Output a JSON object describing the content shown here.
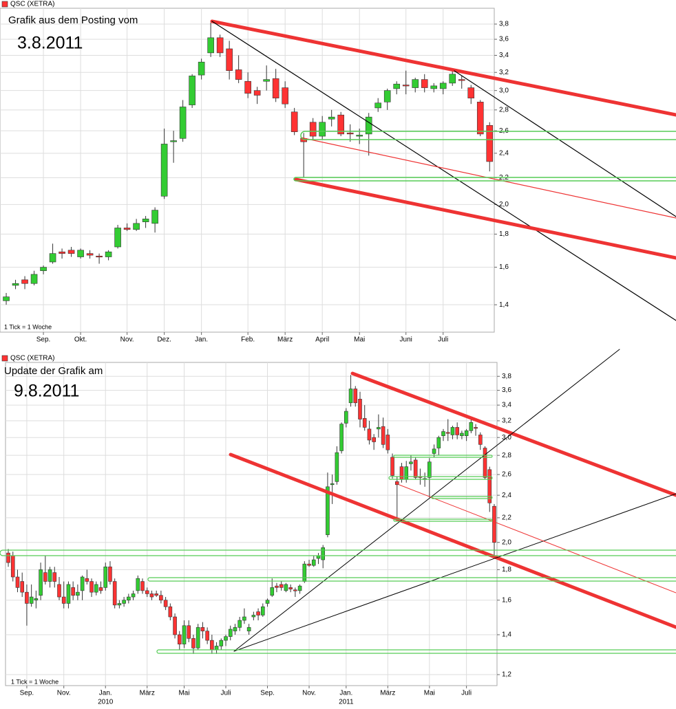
{
  "chart_data": [
    {
      "type": "candlestick",
      "legend": "QSC (XETRA)",
      "title": "Grafik aus dem Posting vom",
      "subtitle": "3.8.2011",
      "note": "1 Tick = 1 Woche",
      "up_color": "#33cc33",
      "down_color": "#ff3333",
      "log_scale": true,
      "grid": true,
      "xlim": [
        -0.67,
        52.5
      ],
      "xticks": [
        {
          "value": 4,
          "label": "Sep."
        },
        {
          "value": 8,
          "label": "Okt."
        },
        {
          "value": 13,
          "label": "Nov."
        },
        {
          "value": 17,
          "label": "Dez."
        },
        {
          "value": 21,
          "label": "Jan."
        },
        {
          "value": 26,
          "label": "Feb."
        },
        {
          "value": 30,
          "label": "März"
        },
        {
          "value": 34,
          "label": "April"
        },
        {
          "value": 38,
          "label": "Mai"
        },
        {
          "value": 43,
          "label": "Juni"
        },
        {
          "value": 47,
          "label": "Juli"
        }
      ],
      "ylim": [
        1.27,
        4.02
      ],
      "yticks": [
        {
          "value": 1.4,
          "label": "1,4"
        },
        {
          "value": 1.6,
          "label": "1,6"
        },
        {
          "value": 1.8,
          "label": "1,8"
        },
        {
          "value": 2.0,
          "label": "2,0"
        },
        {
          "value": 2.2,
          "label": "2,2"
        },
        {
          "value": 2.4,
          "label": "2,4"
        },
        {
          "value": 2.6,
          "label": "2,6"
        },
        {
          "value": 2.8,
          "label": "2,8"
        },
        {
          "value": 3.0,
          "label": "3,0"
        },
        {
          "value": 3.2,
          "label": "3,2"
        },
        {
          "value": 3.4,
          "label": "3,4"
        },
        {
          "value": 3.6,
          "label": "3,6"
        },
        {
          "value": 3.8,
          "label": "3,8"
        }
      ],
      "candles": [
        [
          1.42,
          1.46,
          1.4,
          1.44
        ],
        [
          1.5,
          1.53,
          1.48,
          1.51
        ],
        [
          1.53,
          1.55,
          1.48,
          1.51
        ],
        [
          1.51,
          1.58,
          1.5,
          1.56
        ],
        [
          1.58,
          1.61,
          1.56,
          1.6
        ],
        [
          1.63,
          1.74,
          1.62,
          1.68
        ],
        [
          1.69,
          1.71,
          1.65,
          1.68
        ],
        [
          1.7,
          1.72,
          1.66,
          1.68
        ],
        [
          1.66,
          1.71,
          1.65,
          1.7
        ],
        [
          1.68,
          1.7,
          1.65,
          1.67
        ],
        [
          1.665,
          1.68,
          1.62,
          1.66
        ],
        [
          1.66,
          1.7,
          1.64,
          1.69
        ],
        [
          1.72,
          1.86,
          1.71,
          1.84
        ],
        [
          1.84,
          1.87,
          1.82,
          1.83
        ],
        [
          1.83,
          1.9,
          1.82,
          1.87
        ],
        [
          1.88,
          1.92,
          1.84,
          1.9
        ],
        [
          1.87,
          1.98,
          1.81,
          1.96
        ],
        [
          2.06,
          2.62,
          2.04,
          2.48
        ],
        [
          2.5,
          2.6,
          2.32,
          2.51
        ],
        [
          2.53,
          2.9,
          2.5,
          2.83
        ],
        [
          2.85,
          3.18,
          2.82,
          3.16
        ],
        [
          3.17,
          3.36,
          3.12,
          3.32
        ],
        [
          3.43,
          3.82,
          3.38,
          3.62
        ],
        [
          3.62,
          3.66,
          3.38,
          3.43
        ],
        [
          3.48,
          3.58,
          3.12,
          3.22
        ],
        [
          3.23,
          3.4,
          3.08,
          3.12
        ],
        [
          3.1,
          3.2,
          2.92,
          2.97
        ],
        [
          3.0,
          3.04,
          2.86,
          2.95
        ],
        [
          3.1,
          3.28,
          3.0,
          3.12
        ],
        [
          3.13,
          3.24,
          2.88,
          2.92
        ],
        [
          3.03,
          3.1,
          2.82,
          2.86
        ],
        [
          2.78,
          2.82,
          2.56,
          2.59
        ],
        [
          2.53,
          2.58,
          2.2,
          2.5
        ],
        [
          2.68,
          2.72,
          2.52,
          2.55
        ],
        [
          2.55,
          2.74,
          2.52,
          2.68
        ],
        [
          2.71,
          2.8,
          2.64,
          2.73
        ],
        [
          2.75,
          2.78,
          2.55,
          2.57
        ],
        [
          2.58,
          2.66,
          2.5,
          2.57
        ],
        [
          2.55,
          2.62,
          2.48,
          2.56
        ],
        [
          2.57,
          2.77,
          2.38,
          2.73
        ],
        [
          2.82,
          2.92,
          2.78,
          2.87
        ],
        [
          2.88,
          3.02,
          2.8,
          3.0
        ],
        [
          3.02,
          3.1,
          2.96,
          3.07
        ],
        [
          3.06,
          3.22,
          2.96,
          3.05
        ],
        [
          3.03,
          3.14,
          2.98,
          3.12
        ],
        [
          3.12,
          3.18,
          2.98,
          3.03
        ],
        [
          3.02,
          3.08,
          2.98,
          3.05
        ],
        [
          3.02,
          3.1,
          2.96,
          3.08
        ],
        [
          3.08,
          3.24,
          3.05,
          3.18
        ],
        [
          3.12,
          3.16,
          3.02,
          3.11
        ],
        [
          3.03,
          3.06,
          2.86,
          2.92
        ],
        [
          2.88,
          2.9,
          2.55,
          2.57
        ],
        [
          2.65,
          2.68,
          2.25,
          2.33
        ]
      ]
    },
    {
      "type": "candlestick",
      "legend": "QSC (XETRA)",
      "title": "Update der Grafik am",
      "subtitle": "9.8.2011",
      "note": "1 Tick = 1 Woche",
      "up_color": "#33cc33",
      "down_color": "#ff3333",
      "log_scale": true,
      "grid": true,
      "xlim": [
        -0.6,
        105.6
      ],
      "xticks": [
        {
          "value": 4,
          "label": "Sep."
        },
        {
          "value": 12,
          "label": "Nov."
        },
        {
          "value": 21,
          "label": "Jan."
        },
        {
          "value": 30,
          "label": "März"
        },
        {
          "value": 38,
          "label": "Mai"
        },
        {
          "value": 47,
          "label": "Juli"
        },
        {
          "value": 56,
          "label": "Sep."
        },
        {
          "value": 65,
          "label": "Nov."
        },
        {
          "value": 73,
          "label": "Jan."
        },
        {
          "value": 82,
          "label": "März"
        },
        {
          "value": 91,
          "label": "Mai"
        },
        {
          "value": 99,
          "label": "Juli"
        }
      ],
      "years": [
        {
          "value": 21,
          "label": "2010"
        },
        {
          "value": 73,
          "label": "2011"
        }
      ],
      "ylim": [
        1.15,
        4.01
      ],
      "yticks": [
        {
          "value": 1.2,
          "label": "1,2"
        },
        {
          "value": 1.4,
          "label": "1,4"
        },
        {
          "value": 1.6,
          "label": "1,6"
        },
        {
          "value": 1.8,
          "label": "1,8"
        },
        {
          "value": 2.0,
          "label": "2,0"
        },
        {
          "value": 2.2,
          "label": "2,2"
        },
        {
          "value": 2.4,
          "label": "2,4"
        },
        {
          "value": 2.6,
          "label": "2,6"
        },
        {
          "value": 2.8,
          "label": "2,8"
        },
        {
          "value": 3.0,
          "label": "3,0"
        },
        {
          "value": 3.2,
          "label": "3,2"
        },
        {
          "value": 3.4,
          "label": "3,4"
        },
        {
          "value": 3.6,
          "label": "3,6"
        },
        {
          "value": 3.8,
          "label": "3,8"
        }
      ],
      "candles": [
        [
          1.92,
          1.95,
          1.82,
          1.85
        ],
        [
          1.9,
          1.93,
          1.72,
          1.75
        ],
        [
          1.75,
          1.8,
          1.65,
          1.68
        ],
        [
          1.72,
          1.78,
          1.62,
          1.65
        ],
        [
          1.65,
          1.7,
          1.45,
          1.58
        ],
        [
          1.58,
          1.7,
          1.56,
          1.62
        ],
        [
          1.6,
          1.66,
          1.55,
          1.61
        ],
        [
          1.63,
          1.85,
          1.6,
          1.8
        ],
        [
          1.78,
          1.9,
          1.7,
          1.72
        ],
        [
          1.72,
          1.82,
          1.68,
          1.8
        ],
        [
          1.78,
          1.82,
          1.68,
          1.72
        ],
        [
          1.7,
          1.75,
          1.6,
          1.62
        ],
        [
          1.62,
          1.72,
          1.55,
          1.58
        ],
        [
          1.58,
          1.72,
          1.55,
          1.7
        ],
        [
          1.68,
          1.72,
          1.6,
          1.63
        ],
        [
          1.63,
          1.7,
          1.6,
          1.65
        ],
        [
          1.66,
          1.76,
          1.6,
          1.75
        ],
        [
          1.74,
          1.8,
          1.7,
          1.72
        ],
        [
          1.72,
          1.74,
          1.62,
          1.65
        ],
        [
          1.65,
          1.72,
          1.63,
          1.7
        ],
        [
          1.68,
          1.72,
          1.64,
          1.66
        ],
        [
          1.68,
          1.85,
          1.66,
          1.82
        ],
        [
          1.82,
          1.86,
          1.7,
          1.72
        ],
        [
          1.72,
          1.74,
          1.55,
          1.57
        ],
        [
          1.57,
          1.6,
          1.55,
          1.58
        ],
        [
          1.58,
          1.62,
          1.56,
          1.6
        ],
        [
          1.6,
          1.64,
          1.58,
          1.62
        ],
        [
          1.62,
          1.66,
          1.6,
          1.64
        ],
        [
          1.66,
          1.76,
          1.64,
          1.74
        ],
        [
          1.72,
          1.74,
          1.64,
          1.66
        ],
        [
          1.66,
          1.68,
          1.62,
          1.64
        ],
        [
          1.64,
          1.66,
          1.6,
          1.62
        ],
        [
          1.64,
          1.66,
          1.62,
          1.63
        ],
        [
          1.63,
          1.66,
          1.58,
          1.6
        ],
        [
          1.6,
          1.62,
          1.54,
          1.56
        ],
        [
          1.56,
          1.58,
          1.48,
          1.5
        ],
        [
          1.5,
          1.52,
          1.38,
          1.4
        ],
        [
          1.4,
          1.42,
          1.32,
          1.35
        ],
        [
          1.35,
          1.48,
          1.33,
          1.45
        ],
        [
          1.45,
          1.48,
          1.36,
          1.38
        ],
        [
          1.38,
          1.4,
          1.3,
          1.33
        ],
        [
          1.33,
          1.46,
          1.32,
          1.44
        ],
        [
          1.44,
          1.47,
          1.38,
          1.42
        ],
        [
          1.42,
          1.44,
          1.35,
          1.37
        ],
        [
          1.37,
          1.4,
          1.3,
          1.32
        ],
        [
          1.32,
          1.36,
          1.3,
          1.34
        ],
        [
          1.34,
          1.38,
          1.32,
          1.37
        ],
        [
          1.37,
          1.4,
          1.34,
          1.39
        ],
        [
          1.39,
          1.45,
          1.37,
          1.43
        ],
        [
          1.42,
          1.46,
          1.4,
          1.44
        ],
        [
          1.44,
          1.5,
          1.42,
          1.48
        ],
        [
          1.48,
          1.55,
          1.46,
          1.5
        ],
        [
          1.42,
          1.46,
          1.4,
          1.44
        ],
        [
          1.5,
          1.53,
          1.48,
          1.51
        ],
        [
          1.53,
          1.55,
          1.48,
          1.51
        ],
        [
          1.51,
          1.58,
          1.5,
          1.56
        ],
        [
          1.58,
          1.61,
          1.56,
          1.6
        ],
        [
          1.63,
          1.74,
          1.62,
          1.68
        ],
        [
          1.69,
          1.71,
          1.65,
          1.68
        ],
        [
          1.7,
          1.72,
          1.66,
          1.68
        ],
        [
          1.66,
          1.71,
          1.65,
          1.7
        ],
        [
          1.68,
          1.7,
          1.65,
          1.67
        ],
        [
          1.665,
          1.68,
          1.62,
          1.66
        ],
        [
          1.66,
          1.7,
          1.64,
          1.69
        ],
        [
          1.72,
          1.86,
          1.71,
          1.84
        ],
        [
          1.84,
          1.87,
          1.82,
          1.83
        ],
        [
          1.83,
          1.9,
          1.82,
          1.87
        ],
        [
          1.88,
          1.92,
          1.84,
          1.9
        ],
        [
          1.87,
          1.98,
          1.81,
          1.96
        ],
        [
          2.06,
          2.62,
          2.04,
          2.48
        ],
        [
          2.5,
          2.6,
          2.32,
          2.51
        ],
        [
          2.53,
          2.9,
          2.5,
          2.83
        ],
        [
          2.85,
          3.18,
          2.82,
          3.16
        ],
        [
          3.17,
          3.36,
          3.12,
          3.32
        ],
        [
          3.43,
          3.82,
          3.38,
          3.62
        ],
        [
          3.62,
          3.66,
          3.38,
          3.43
        ],
        [
          3.48,
          3.58,
          3.12,
          3.22
        ],
        [
          3.23,
          3.4,
          3.08,
          3.12
        ],
        [
          3.1,
          3.2,
          2.92,
          2.97
        ],
        [
          3.0,
          3.04,
          2.86,
          2.95
        ],
        [
          3.1,
          3.28,
          3.0,
          3.12
        ],
        [
          3.13,
          3.24,
          2.88,
          2.92
        ],
        [
          3.03,
          3.1,
          2.82,
          2.86
        ],
        [
          2.78,
          2.82,
          2.56,
          2.59
        ],
        [
          2.53,
          2.58,
          2.2,
          2.5
        ],
        [
          2.68,
          2.72,
          2.52,
          2.55
        ],
        [
          2.55,
          2.74,
          2.52,
          2.68
        ],
        [
          2.71,
          2.8,
          2.64,
          2.73
        ],
        [
          2.75,
          2.78,
          2.55,
          2.57
        ],
        [
          2.58,
          2.66,
          2.5,
          2.57
        ],
        [
          2.55,
          2.62,
          2.48,
          2.56
        ],
        [
          2.57,
          2.77,
          2.38,
          2.73
        ],
        [
          2.82,
          2.92,
          2.78,
          2.87
        ],
        [
          2.88,
          3.02,
          2.8,
          3.0
        ],
        [
          3.02,
          3.1,
          2.96,
          3.07
        ],
        [
          3.06,
          3.22,
          2.96,
          3.05
        ],
        [
          3.03,
          3.14,
          2.98,
          3.12
        ],
        [
          3.12,
          3.18,
          2.98,
          3.03
        ],
        [
          3.02,
          3.08,
          2.98,
          3.05
        ],
        [
          3.02,
          3.1,
          2.96,
          3.08
        ],
        [
          3.08,
          3.24,
          3.05,
          3.18
        ],
        [
          3.12,
          3.16,
          3.02,
          3.11
        ],
        [
          3.03,
          3.06,
          2.86,
          2.92
        ],
        [
          2.88,
          2.9,
          2.55,
          2.57
        ],
        [
          2.65,
          2.68,
          2.25,
          2.33
        ],
        [
          2.3,
          2.32,
          1.9,
          2.0
        ]
      ]
    }
  ]
}
